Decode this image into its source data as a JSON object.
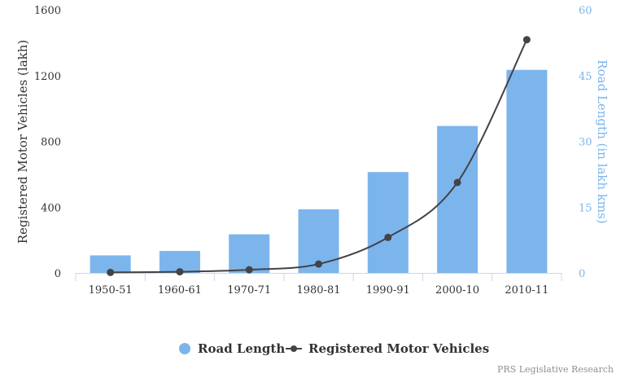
{
  "chart_data": {
    "type": "bar",
    "categories": [
      "1950-51",
      "1960-61",
      "1970-71",
      "1980-81",
      "1990-91",
      "2000-10",
      "2010-11"
    ],
    "series": [
      {
        "name": "Road Length",
        "type": "bar",
        "axis": "right",
        "color": "#7cb5ec",
        "values": [
          4.0,
          5.0,
          8.8,
          14.5,
          23.0,
          33.5,
          46.3
        ]
      },
      {
        "name": "Registered Motor Vehicles",
        "type": "line",
        "axis": "left",
        "color": "#434348",
        "values": [
          3,
          7,
          19,
          54,
          216,
          550,
          1418
        ]
      }
    ],
    "yaxis_left": {
      "label": "Registered Motor Vehicles (lakh)",
      "min": 0,
      "max": 1600,
      "ticks": [
        0,
        400,
        800,
        1200,
        1600
      ]
    },
    "yaxis_right": {
      "label": "Road Length (in lakh kms)",
      "min": 0,
      "max": 60,
      "ticks": [
        0,
        15,
        30,
        45,
        60
      ]
    },
    "grid": false,
    "legend_position": "bottom-center",
    "credit": "PRS Legislative Research"
  }
}
